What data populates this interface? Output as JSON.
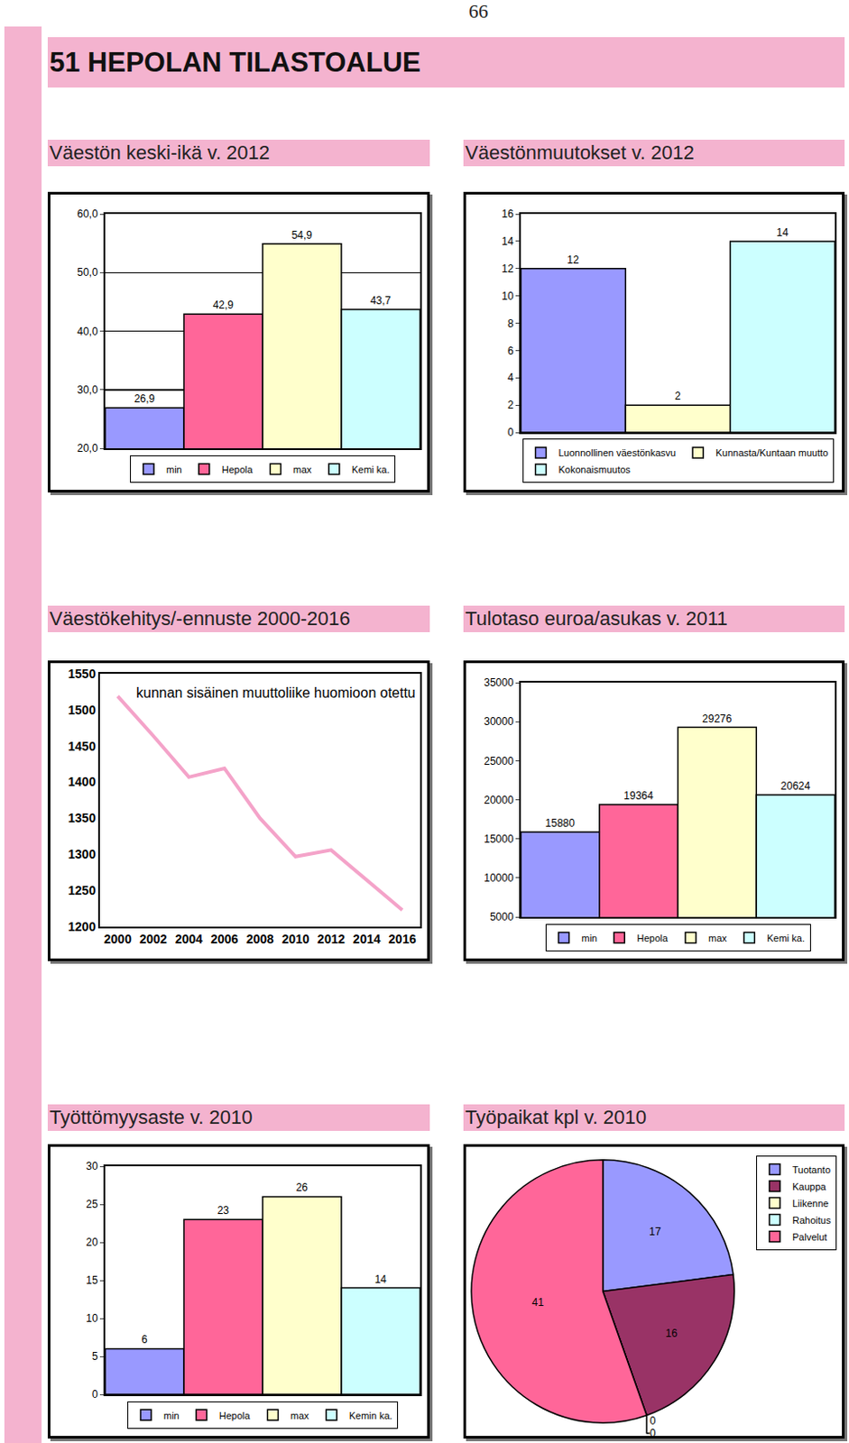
{
  "page_number": "66",
  "title": "51 HEPOLAN TILASTOALUE",
  "chart_data": [
    {
      "type": "bar",
      "title": "Väestön  keski-ikä v. 2012",
      "categories": [
        "min",
        "Hepola",
        "max",
        "Kemi ka."
      ],
      "values": [
        26.9,
        42.9,
        54.9,
        43.7
      ],
      "value_labels": [
        "26,9",
        "42,9",
        "54,9",
        "43,7"
      ],
      "colors": [
        "#9999ff",
        "#ff6699",
        "#ffffcc",
        "#ccffff"
      ],
      "ylim": [
        20,
        60
      ],
      "yticks": [
        {
          "value": 20,
          "label": "20,0"
        },
        {
          "value": 30,
          "label": "30,0"
        },
        {
          "value": 40,
          "label": "40,0"
        },
        {
          "value": 50,
          "label": "50,0"
        },
        {
          "value": 60,
          "label": "60,0"
        }
      ],
      "grid": true,
      "legend": "bottom",
      "tick_labels": "y",
      "data_labels": true
    },
    {
      "type": "bar",
      "title": "Väestönmuutokset v. 2012",
      "categories": [
        "Luonnollinen väestönkasvu",
        "Kunnasta/Kuntaan muutto",
        "Kokonaismuutos"
      ],
      "values": [
        12,
        2,
        14
      ],
      "colors": [
        "#9999ff",
        "#ffffcc",
        "#ccffff"
      ],
      "ylim": [
        0,
        16
      ],
      "yticks": [
        0,
        2,
        4,
        6,
        8,
        10,
        12,
        14,
        16
      ],
      "grid": false,
      "legend": "bottom",
      "tick_labels": "y",
      "data_labels": true
    },
    {
      "type": "line",
      "title": "Väestökehitys/-ennuste 2000-2016",
      "annotations": [
        "kunnan sisäinen muuttoliike huomioon otettu"
      ],
      "x": [
        2000,
        2002,
        2004,
        2006,
        2008,
        2010,
        2012,
        2014,
        2016
      ],
      "values": [
        1519,
        1464,
        1407,
        1419,
        1350,
        1297,
        1306,
        1264,
        1223
      ],
      "color": "#f4a3c9",
      "xlim": [
        1999,
        2017
      ],
      "xticks": [
        2000,
        2002,
        2004,
        2006,
        2008,
        2010,
        2012,
        2014,
        2016
      ],
      "ylim": [
        1200,
        1550
      ],
      "yticks": [
        1200,
        1250,
        1300,
        1350,
        1400,
        1450,
        1500,
        1550
      ],
      "grid": false
    },
    {
      "type": "bar",
      "title": "Tulotaso euroa/asukas v. 2011",
      "categories": [
        "min",
        "Hepola",
        "max",
        "Kemi ka."
      ],
      "values": [
        15880,
        19364,
        29276,
        20624
      ],
      "colors": [
        "#9999ff",
        "#ff6699",
        "#ffffcc",
        "#ccffff"
      ],
      "ylim": [
        5000,
        35000
      ],
      "yticks": [
        5000,
        10000,
        15000,
        20000,
        25000,
        30000,
        35000
      ],
      "grid": false,
      "legend": "bottom",
      "tick_labels": "y",
      "data_labels": true
    },
    {
      "type": "bar",
      "title": "Työttömyysaste  v. 2010",
      "categories": [
        "min",
        "Hepola",
        "max",
        "Kemin ka."
      ],
      "values": [
        6,
        23,
        26,
        14
      ],
      "colors": [
        "#9999ff",
        "#ff6699",
        "#ffffcc",
        "#ccffff"
      ],
      "ylim": [
        0,
        30
      ],
      "yticks": [
        0,
        5,
        10,
        15,
        20,
        25,
        30
      ],
      "grid": false,
      "legend": "bottom",
      "tick_labels": "y",
      "data_labels": true
    },
    {
      "type": "pie",
      "title": "Työpaikat kpl v. 2010",
      "categories": [
        "Tuotanto",
        "Kauppa",
        "Liikenne",
        "Rahoitus",
        "Palvelut"
      ],
      "values": [
        17,
        16,
        0,
        0,
        41
      ],
      "colors": [
        "#9999ff",
        "#993366",
        "#ffffcc",
        "#ccffff",
        "#ff6699"
      ],
      "legend": "top right",
      "data_labels": true
    }
  ]
}
